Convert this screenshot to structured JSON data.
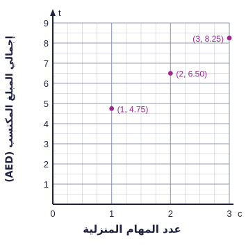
{
  "chart_data": {
    "type": "scatter",
    "title": "",
    "xlabel": "عدد المهام المنزلية",
    "ylabel": "إجمالي المبلغ المكتسب (AED)",
    "x_axis_end_label": "c",
    "y_axis_end_label": "t",
    "xlim": [
      0,
      3
    ],
    "ylim": [
      0,
      9
    ],
    "x_ticks": [
      0,
      1,
      2,
      3
    ],
    "y_ticks": [
      0,
      1,
      2,
      3,
      4,
      5,
      6,
      7,
      8,
      9
    ],
    "grid": true,
    "legend": "none",
    "point_color": "#a0258f",
    "grid_color": "#8a8fa8",
    "axis_color": "#1f2040",
    "points": [
      {
        "x": 1,
        "y": 4.75,
        "label": "(1, 4.75)"
      },
      {
        "x": 2,
        "y": 6.5,
        "label": "(2, 6.50)"
      },
      {
        "x": 3,
        "y": 8.25,
        "label": "(3, 8.25)"
      }
    ]
  }
}
